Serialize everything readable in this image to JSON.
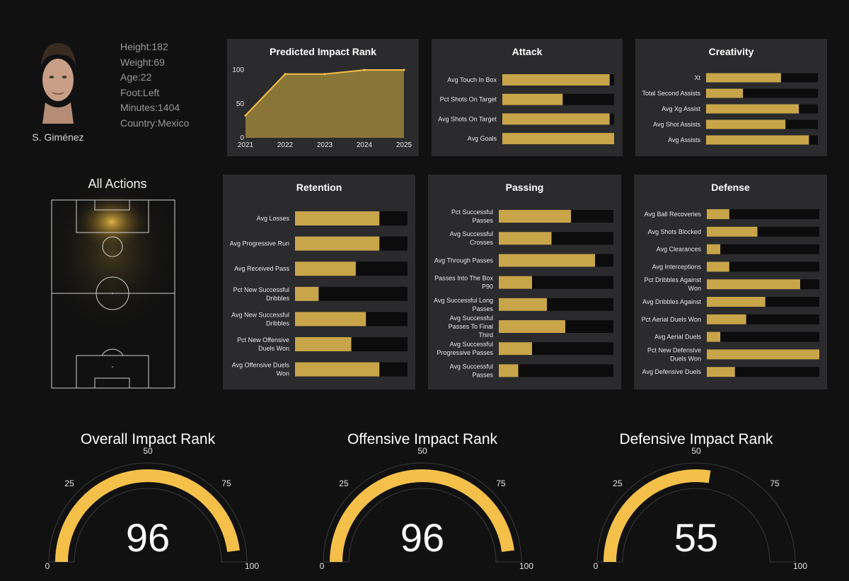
{
  "colors": {
    "background": "#111111",
    "panel": "#2b2b2d",
    "bar": "#c9a54a",
    "track": "#0c0c0c",
    "gauge": "#f4c04a",
    "area": "#8a7538",
    "line": "#f4c04a"
  },
  "player": {
    "name": "S. Giménez",
    "stats": [
      "Height:182",
      "Weight:69",
      "Age:22",
      "Foot:Left",
      "Minutes:1404",
      "Country:Mexico"
    ]
  },
  "pitch": {
    "title": "All Actions"
  },
  "chart_data": [
    {
      "id": "impact",
      "type": "area",
      "title": "Predicted Impact Rank",
      "x": [
        2021,
        2022,
        2023,
        2024,
        2025
      ],
      "x_labels": [
        "2021",
        "2022",
        "2023",
        "2024",
        "2025"
      ],
      "values": [
        33,
        94,
        94,
        100,
        100
      ],
      "ylim": [
        0,
        100
      ],
      "y_ticks": [
        0,
        50,
        100
      ],
      "y_tick_labels": [
        "0",
        "50",
        "100"
      ]
    },
    {
      "id": "attack",
      "type": "bar",
      "orientation": "horizontal",
      "title": "Attack",
      "xlim": [
        0,
        1
      ],
      "categories": [
        [
          "Avg Touch In Box"
        ],
        [
          "Pct Shots On Target"
        ],
        [
          "Avg Shots On Target"
        ],
        [
          "Avg Goals"
        ]
      ],
      "values": [
        0.96,
        0.54,
        0.96,
        1.0
      ]
    },
    {
      "id": "creativity",
      "type": "bar",
      "orientation": "horizontal",
      "title": "Creativity",
      "xlim": [
        0,
        1
      ],
      "categories": [
        [
          "Xt"
        ],
        [
          "Total Second Assists"
        ],
        [
          "Avg Xg Assist"
        ],
        [
          "Avg Shot Assists"
        ],
        [
          "Avg Assists"
        ]
      ],
      "values": [
        0.67,
        0.33,
        0.83,
        0.71,
        0.92
      ]
    },
    {
      "id": "retention",
      "type": "bar",
      "orientation": "horizontal",
      "title": "Retention",
      "xlim": [
        0,
        1
      ],
      "categories": [
        [
          "Avg Losses"
        ],
        [
          "Avg Progressive Run"
        ],
        [
          "Avg Received Pass"
        ],
        [
          "Pct New Successful",
          "Dribbles"
        ],
        [
          "Avg New Successful",
          "Dribbles"
        ],
        [
          "Pct New Offensive",
          "Duels Won"
        ],
        [
          "Avg Offensive Duels",
          "Won"
        ]
      ],
      "values": [
        0.75,
        0.75,
        0.54,
        0.21,
        0.63,
        0.5,
        0.75
      ]
    },
    {
      "id": "passing",
      "type": "bar",
      "orientation": "horizontal",
      "title": "Passing",
      "xlim": [
        0,
        1
      ],
      "categories": [
        [
          "Pct Successful",
          "Passes"
        ],
        [
          "Avg Successful",
          "Crosses"
        ],
        [
          "Avg Through Passes"
        ],
        [
          "Passes Into The Box",
          "P90"
        ],
        [
          "Avg Successful Long",
          "Passes"
        ],
        [
          "Avg Successful",
          "Passes To Final",
          "Third"
        ],
        [
          "Avg Successful",
          "Progressive Passes"
        ],
        [
          "Avg Successful",
          "Passes"
        ]
      ],
      "values": [
        0.63,
        0.46,
        0.84,
        0.29,
        0.42,
        0.58,
        0.29,
        0.17
      ]
    },
    {
      "id": "defense",
      "type": "bar",
      "orientation": "horizontal",
      "title": "Defense",
      "xlim": [
        0,
        1
      ],
      "categories": [
        [
          "Avg Ball Recoveries"
        ],
        [
          "Avg Shots Blocked"
        ],
        [
          "Avg Clearances"
        ],
        [
          "Avg Interceptions"
        ],
        [
          "Pct Dribbles Against",
          "Won"
        ],
        [
          "Avg Dribbles Against"
        ],
        [
          "Pct Aerial Duels Won"
        ],
        [
          "Avg Aerial Duels"
        ],
        [
          "Pct New Defensive",
          "Duels Won"
        ],
        [
          "Avg Defensive Duels"
        ]
      ],
      "values": [
        0.2,
        0.45,
        0.12,
        0.2,
        0.83,
        0.52,
        0.35,
        0.12,
        1.0,
        0.25
      ]
    },
    {
      "id": "overall",
      "type": "gauge",
      "title": "Overall Impact Rank",
      "value": 96,
      "value_label": "96",
      "range": [
        0,
        100
      ],
      "ticks": [
        "0",
        "25",
        "50",
        "75",
        "100"
      ]
    },
    {
      "id": "offensive",
      "type": "gauge",
      "title": "Offensive Impact Rank",
      "value": 96,
      "value_label": "96",
      "range": [
        0,
        100
      ],
      "ticks": [
        "0",
        "25",
        "50",
        "75",
        "100"
      ]
    },
    {
      "id": "defensive",
      "type": "gauge",
      "title": "Defensive Impact Rank",
      "value": 55,
      "value_label": "55",
      "range": [
        0,
        100
      ],
      "ticks": [
        "0",
        "25",
        "50",
        "75",
        "100"
      ]
    }
  ]
}
